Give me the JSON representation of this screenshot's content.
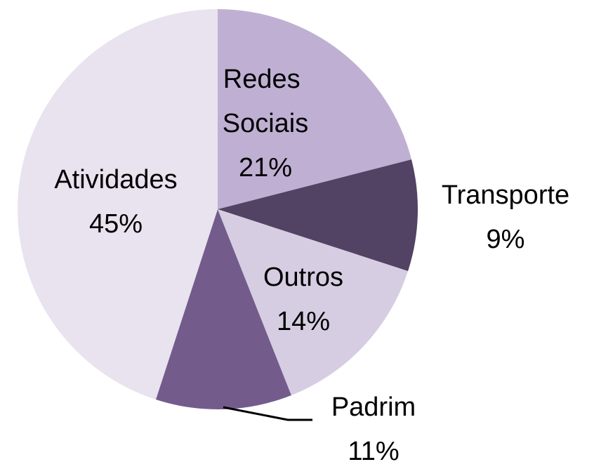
{
  "chart_data": {
    "type": "pie",
    "categories": [
      "Redes Sociais",
      "Transporte",
      "Outros",
      "Padrim",
      "Atividades"
    ],
    "values": [
      21,
      9,
      14,
      11,
      45
    ],
    "value_labels": [
      "21%",
      "9%",
      "14%",
      "11%",
      "45%"
    ],
    "colors": [
      "#bfb0d3",
      "#524263",
      "#d6cde2",
      "#735c8c",
      "#e8e3ef"
    ]
  }
}
